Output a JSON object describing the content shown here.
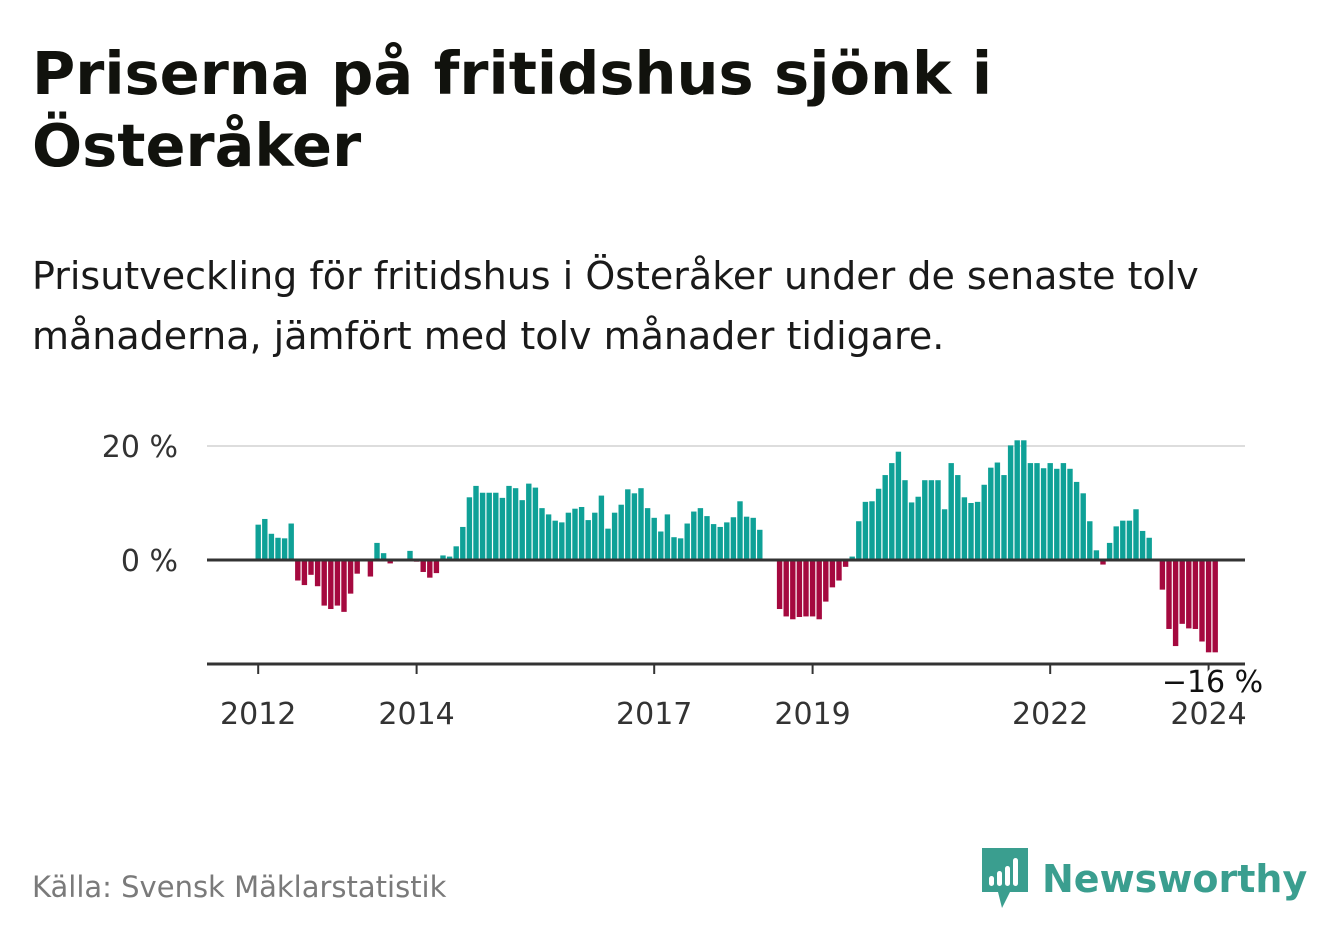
{
  "title": "Priserna på fritidshus sjönk i Österåker",
  "subtitle": "Prisutveckling för fritidshus i Österåker under de senaste tolv månaderna, jämfört med tolv månader tidigare.",
  "source": "Källa: Svensk Mäklarstatistik",
  "brand": {
    "name": "Newsworthy",
    "logo_icon": "bar-chart-speech-bubble-icon"
  },
  "colors": {
    "positive": "#0fa197",
    "negative": "#a5093f",
    "axis": "#333333",
    "grid": "#dddddd",
    "brand": "#3a9e8f"
  },
  "chart_data": {
    "type": "bar",
    "ylabel": "",
    "xlabel": "",
    "ylim": [
      -18,
      21
    ],
    "y_ticks": [
      {
        "value": 0,
        "label": "0 %"
      },
      {
        "value": 20,
        "label": "20 %"
      }
    ],
    "x_ticks": [
      {
        "label": "2012",
        "index": 0
      },
      {
        "label": "2014",
        "index": 24
      },
      {
        "label": "2017",
        "index": 60
      },
      {
        "label": "2019",
        "index": 84
      },
      {
        "label": "2022",
        "index": 120
      },
      {
        "label": "2024",
        "index": 144
      }
    ],
    "last_label": "−16 %",
    "series": [
      {
        "name": "Prisutveckling",
        "start": "2012-01",
        "values": [
          6.2,
          7.2,
          4.6,
          3.9,
          3.8,
          6.4,
          -3.6,
          -4.4,
          -2.6,
          -4.6,
          -8.0,
          -8.6,
          -8.0,
          -9.1,
          -5.9,
          -2.4,
          null,
          -2.9,
          3.0,
          1.2,
          -0.6,
          null,
          null,
          1.6,
          -0.3,
          -2.1,
          -3.1,
          -2.3,
          0.8,
          0.6,
          2.4,
          5.8,
          11.0,
          13.0,
          11.8,
          11.8,
          11.8,
          10.9,
          13.0,
          12.6,
          10.5,
          13.4,
          12.7,
          9.1,
          8.0,
          6.9,
          6.6,
          8.3,
          9.0,
          9.3,
          7.0,
          8.3,
          11.3,
          5.5,
          8.3,
          9.7,
          12.4,
          11.7,
          12.6,
          9.1,
          7.4,
          5.0,
          8.0,
          4.0,
          3.8,
          6.4,
          8.5,
          9.1,
          7.7,
          6.3,
          5.8,
          6.6,
          7.5,
          10.3,
          7.6,
          7.4,
          5.3,
          null,
          null,
          -8.6,
          -9.9,
          -10.4,
          -10.0,
          -9.9,
          -9.9,
          -10.4,
          -7.3,
          -4.8,
          -3.6,
          -1.2,
          0.6,
          6.8,
          10.2,
          10.3,
          12.5,
          14.9,
          17.0,
          19.0,
          14.0,
          10.1,
          11.1,
          14.0,
          14.0,
          14.0,
          8.9,
          17.0,
          14.9,
          11.0,
          10.0,
          10.2,
          13.2,
          16.2,
          17.1,
          14.9,
          20.1,
          21.0,
          21.0,
          17.0,
          17.0,
          16.1,
          17.0,
          16.0,
          17.0,
          16.0,
          13.7,
          11.7,
          6.8,
          1.7,
          -0.8,
          3.0,
          5.9,
          6.9,
          6.9,
          8.9,
          5.1,
          3.9,
          null,
          -5.2,
          -12.1,
          -15.1,
          -11.2,
          -12.0,
          -12.1,
          -14.3,
          -16.2,
          -16.2
        ]
      }
    ]
  }
}
